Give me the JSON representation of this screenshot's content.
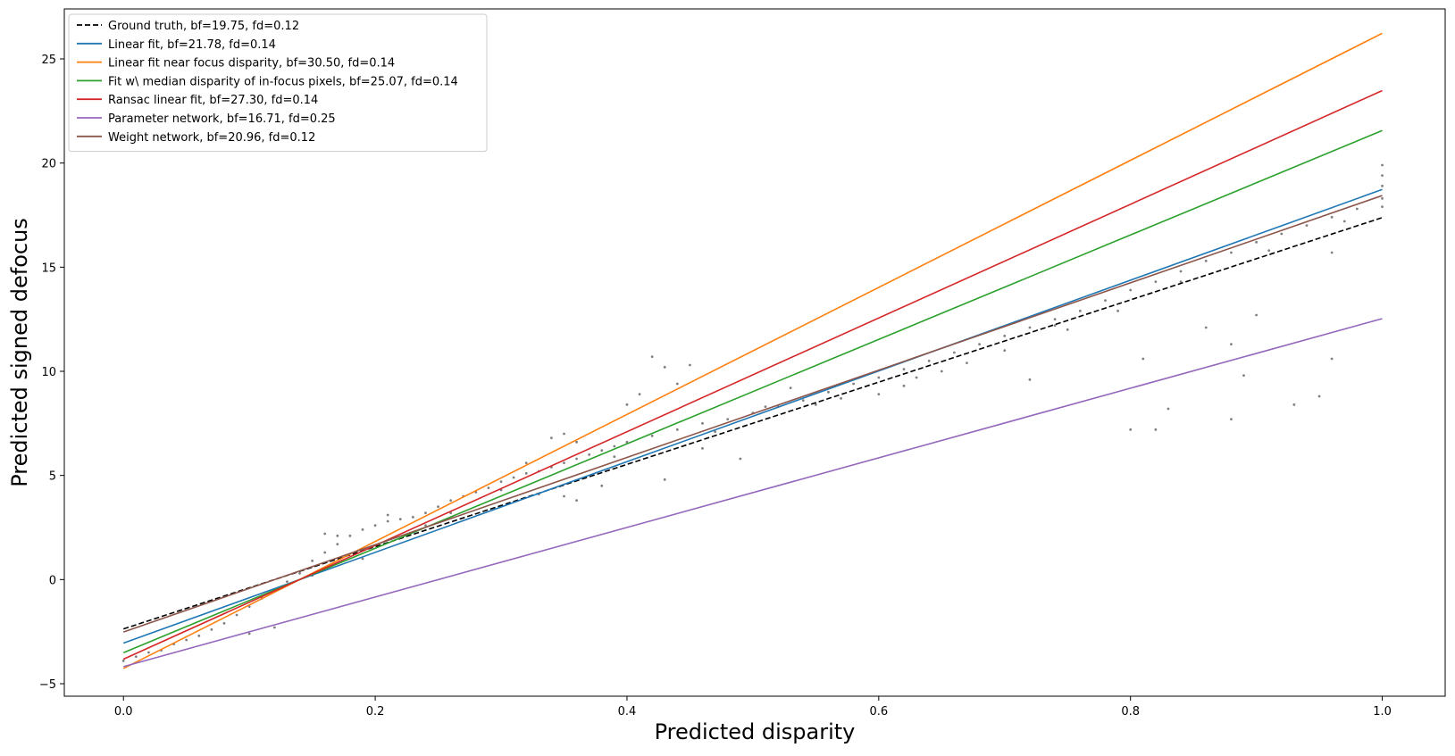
{
  "chart_data": {
    "type": "scatter",
    "title": "",
    "xlabel": "Predicted disparity",
    "ylabel": "Predicted signed defocus",
    "xlim": [
      -0.047,
      1.05
    ],
    "ylim": [
      -5.6,
      27.4
    ],
    "x_ticks": [
      {
        "value": 0.0,
        "label": "0.0"
      },
      {
        "value": 0.2,
        "label": "0.2"
      },
      {
        "value": 0.4,
        "label": "0.4"
      },
      {
        "value": 0.6,
        "label": "0.6"
      },
      {
        "value": 0.8,
        "label": "0.8"
      },
      {
        "value": 1.0,
        "label": "1.0"
      }
    ],
    "y_ticks": [
      {
        "value": -5,
        "label": "−5"
      },
      {
        "value": 0,
        "label": "0"
      },
      {
        "value": 5,
        "label": "5"
      },
      {
        "value": 10,
        "label": "10"
      },
      {
        "value": 15,
        "label": "15"
      },
      {
        "value": 20,
        "label": "20"
      },
      {
        "value": 25,
        "label": "25"
      }
    ],
    "grid": false,
    "legend_position": "top-left",
    "series": [
      {
        "name": "Ground truth, bf=19.75, fd=0.12",
        "color": "#000000",
        "dash": "dashed",
        "x": [
          0,
          1
        ],
        "y": [
          -2.37,
          17.38
        ]
      },
      {
        "name": "Linear fit, bf=21.78, fd=0.14",
        "color": "#1f77b4",
        "dash": "solid",
        "x": [
          0,
          1
        ],
        "y": [
          -3.05,
          18.73
        ]
      },
      {
        "name": "Linear fit near focus disparity, bf=30.50, fd=0.14",
        "color": "#ff7f0e",
        "dash": "solid",
        "x": [
          0,
          1
        ],
        "y": [
          -4.27,
          26.23
        ]
      },
      {
        "name": "Fit w\\ median disparity of in-focus pixels, bf=25.07, fd=0.14",
        "color": "#2ca02c",
        "dash": "solid",
        "x": [
          0,
          1
        ],
        "y": [
          -3.51,
          21.56
        ]
      },
      {
        "name": "Ransac linear fit, bf=27.30, fd=0.14",
        "color": "#d62728",
        "dash": "solid",
        "x": [
          0,
          1
        ],
        "y": [
          -3.82,
          23.48
        ]
      },
      {
        "name": "Parameter network, bf=16.71, fd=0.25",
        "color": "#9467bd",
        "dash": "solid",
        "x": [
          0,
          1
        ],
        "y": [
          -4.18,
          12.53
        ]
      },
      {
        "name": "Weight network, bf=20.96, fd=0.12",
        "color": "#8c564b",
        "dash": "solid",
        "x": [
          0,
          1
        ],
        "y": [
          -2.52,
          18.44
        ]
      }
    ],
    "scatter": {
      "color": "#808080",
      "points": [
        [
          0.0,
          -3.9
        ],
        [
          0.01,
          -3.7
        ],
        [
          0.02,
          -3.5
        ],
        [
          0.03,
          -3.4
        ],
        [
          0.04,
          -3.1
        ],
        [
          0.05,
          -2.9
        ],
        [
          0.06,
          -2.7
        ],
        [
          0.07,
          -2.4
        ],
        [
          0.08,
          -2.1
        ],
        [
          0.09,
          -1.7
        ],
        [
          0.1,
          -1.3
        ],
        [
          0.11,
          -0.9
        ],
        [
          0.12,
          -0.5
        ],
        [
          0.13,
          -0.1
        ],
        [
          0.14,
          0.3
        ],
        [
          0.15,
          0.9
        ],
        [
          0.16,
          1.3
        ],
        [
          0.17,
          1.7
        ],
        [
          0.18,
          2.1
        ],
        [
          0.19,
          2.4
        ],
        [
          0.2,
          2.6
        ],
        [
          0.21,
          2.8
        ],
        [
          0.22,
          2.9
        ],
        [
          0.23,
          3.0
        ],
        [
          0.24,
          3.2
        ],
        [
          0.25,
          3.5
        ],
        [
          0.26,
          3.8
        ],
        [
          0.27,
          4.0
        ],
        [
          0.28,
          4.2
        ],
        [
          0.29,
          4.4
        ],
        [
          0.3,
          4.7
        ],
        [
          0.31,
          4.9
        ],
        [
          0.32,
          5.1
        ],
        [
          0.33,
          5.2
        ],
        [
          0.34,
          5.4
        ],
        [
          0.35,
          5.6
        ],
        [
          0.36,
          5.8
        ],
        [
          0.37,
          6.0
        ],
        [
          0.38,
          6.2
        ],
        [
          0.39,
          6.4
        ],
        [
          0.4,
          6.6
        ],
        [
          0.42,
          6.9
        ],
        [
          0.44,
          7.2
        ],
        [
          0.46,
          7.5
        ],
        [
          0.48,
          7.7
        ],
        [
          0.5,
          8.0
        ],
        [
          0.52,
          8.3
        ],
        [
          0.54,
          8.6
        ],
        [
          0.56,
          9.0
        ],
        [
          0.58,
          9.4
        ],
        [
          0.6,
          9.7
        ],
        [
          0.62,
          10.1
        ],
        [
          0.64,
          10.5
        ],
        [
          0.66,
          10.9
        ],
        [
          0.68,
          11.3
        ],
        [
          0.7,
          11.7
        ],
        [
          0.72,
          12.1
        ],
        [
          0.74,
          12.5
        ],
        [
          0.76,
          12.9
        ],
        [
          0.78,
          13.4
        ],
        [
          0.8,
          13.9
        ],
        [
          0.82,
          14.3
        ],
        [
          0.84,
          14.8
        ],
        [
          0.86,
          15.3
        ],
        [
          0.88,
          15.7
        ],
        [
          0.9,
          16.2
        ],
        [
          0.92,
          16.6
        ],
        [
          0.94,
          17.0
        ],
        [
          0.96,
          17.4
        ],
        [
          0.98,
          17.8
        ],
        [
          1.0,
          18.3
        ],
        [
          0.1,
          -2.6
        ],
        [
          0.12,
          -2.3
        ],
        [
          0.15,
          0.2
        ],
        [
          0.16,
          2.2
        ],
        [
          0.17,
          2.1
        ],
        [
          0.19,
          1.0
        ],
        [
          0.21,
          3.1
        ],
        [
          0.24,
          2.6
        ],
        [
          0.26,
          3.2
        ],
        [
          0.33,
          4.1
        ],
        [
          0.35,
          4.0
        ],
        [
          0.36,
          3.8
        ],
        [
          0.38,
          4.5
        ],
        [
          0.34,
          6.8
        ],
        [
          0.35,
          7.0
        ],
        [
          0.4,
          8.4
        ],
        [
          0.41,
          8.9
        ],
        [
          0.42,
          10.7
        ],
        [
          0.43,
          10.2
        ],
        [
          0.44,
          9.4
        ],
        [
          0.45,
          10.3
        ],
        [
          0.49,
          5.8
        ],
        [
          0.43,
          4.8
        ],
        [
          0.46,
          6.3
        ],
        [
          0.53,
          9.2
        ],
        [
          0.55,
          8.4
        ],
        [
          0.6,
          8.9
        ],
        [
          0.63,
          9.7
        ],
        [
          0.65,
          10.0
        ],
        [
          0.7,
          11.0
        ],
        [
          0.72,
          9.6
        ],
        [
          0.75,
          12.0
        ],
        [
          0.8,
          7.2
        ],
        [
          0.81,
          10.6
        ],
        [
          0.82,
          7.2
        ],
        [
          0.83,
          8.2
        ],
        [
          0.86,
          12.1
        ],
        [
          0.88,
          7.7
        ],
        [
          0.88,
          11.3
        ],
        [
          0.89,
          9.8
        ],
        [
          0.9,
          12.7
        ],
        [
          0.93,
          8.4
        ],
        [
          0.95,
          8.8
        ],
        [
          0.96,
          10.6
        ],
        [
          0.96,
          15.7
        ],
        [
          0.3,
          4.3
        ],
        [
          0.32,
          5.6
        ],
        [
          0.36,
          6.6
        ],
        [
          0.39,
          5.9
        ],
        [
          0.47,
          7.1
        ],
        [
          0.51,
          8.3
        ],
        [
          0.57,
          8.7
        ],
        [
          0.62,
          9.3
        ],
        [
          0.67,
          10.4
        ],
        [
          0.74,
          12.2
        ],
        [
          0.79,
          12.9
        ],
        [
          0.84,
          14.3
        ],
        [
          0.91,
          15.8
        ],
        [
          0.97,
          17.2
        ],
        [
          1.0,
          19.9
        ],
        [
          1.0,
          19.4
        ],
        [
          1.0,
          18.9
        ],
        [
          1.0,
          17.9
        ]
      ]
    }
  }
}
